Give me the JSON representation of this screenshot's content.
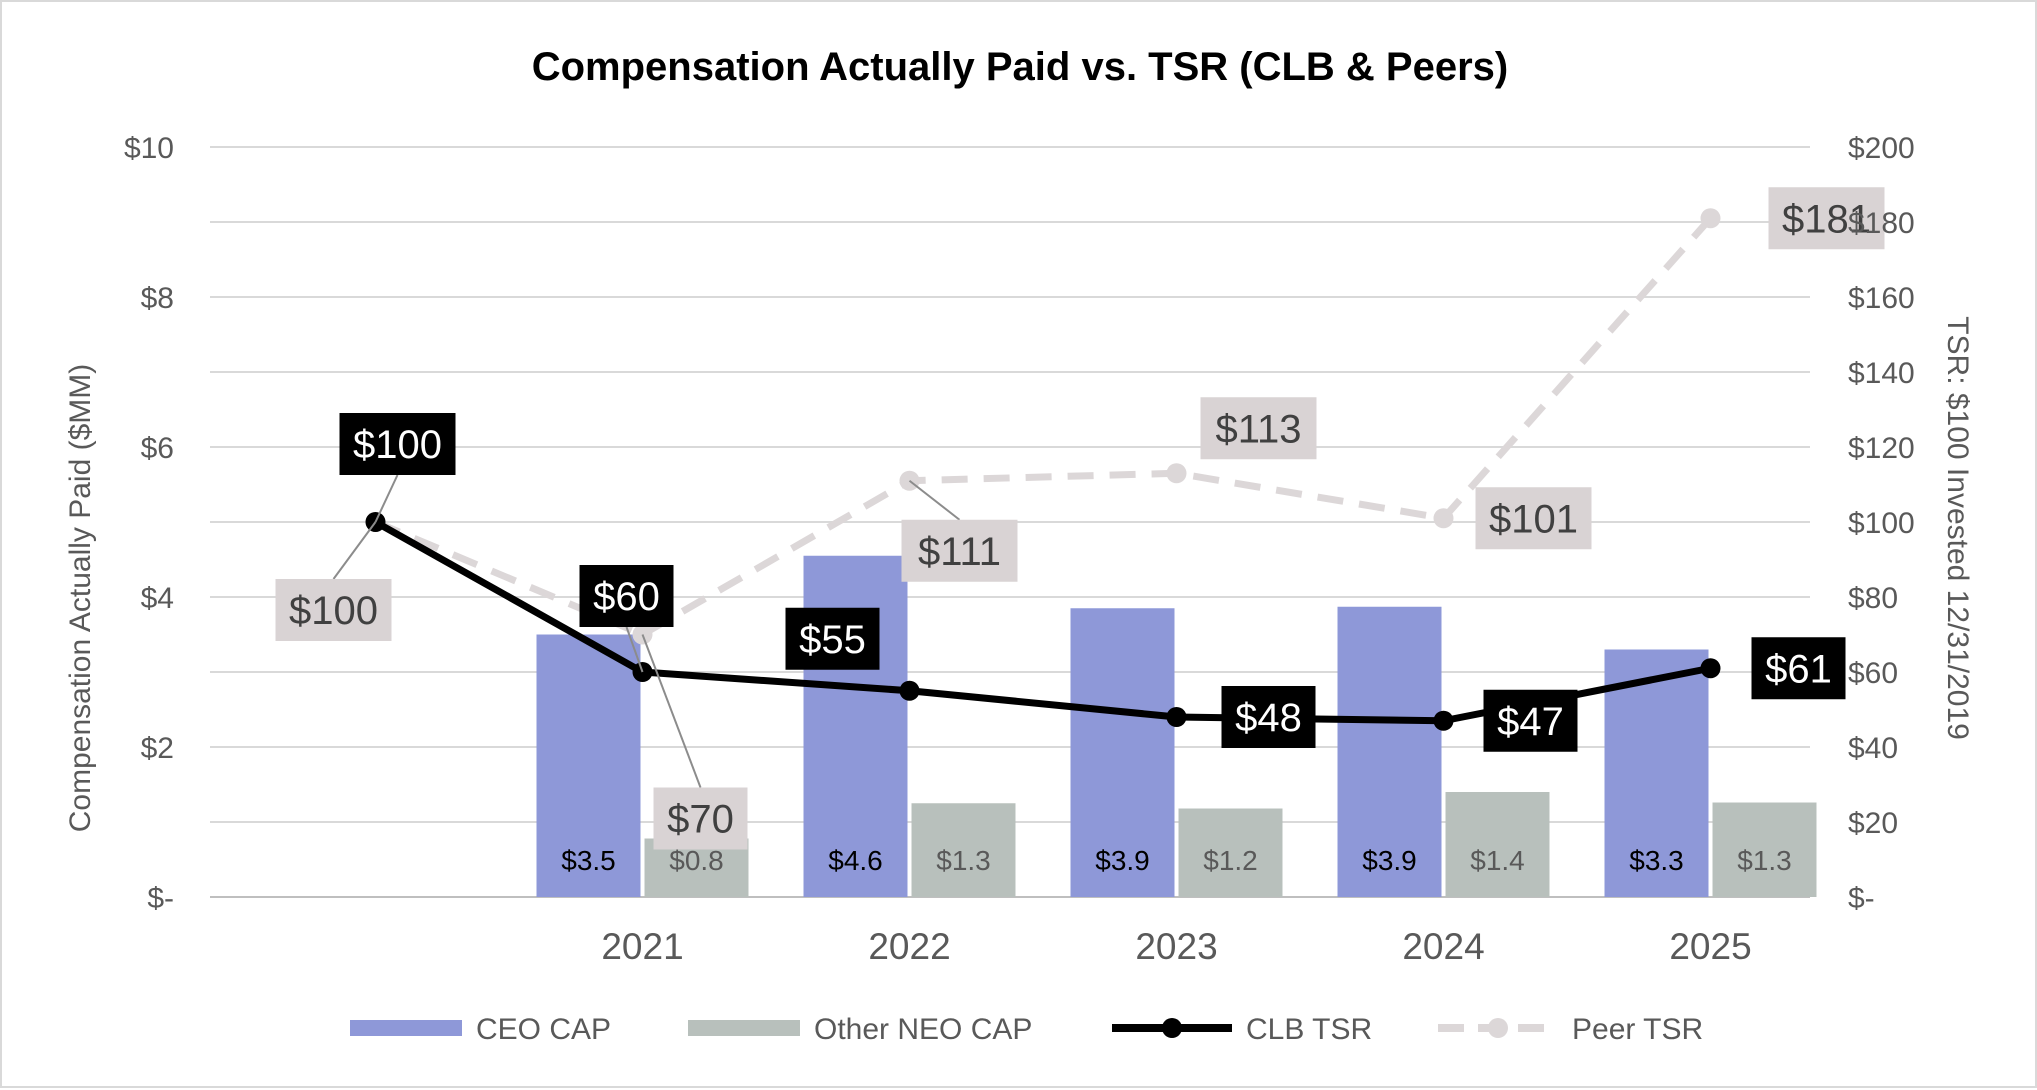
{
  "chart_data": {
    "type": "bar",
    "title": "Compensation Actually Paid vs. TSR (CLB & Peers)",
    "ylabel": "Compensation  Actually Paid ($MM)",
    "y2label": "TSR: $100 Invested  12/31/2019",
    "ylim": [
      0,
      10
    ],
    "y2lim": [
      0,
      200
    ],
    "yticks": [
      0,
      2,
      4,
      6,
      8,
      10
    ],
    "ytick_labels": [
      "$-",
      "$2",
      "$4",
      "$6",
      "$8",
      "$10"
    ],
    "y2ticks": [
      0,
      20,
      40,
      60,
      80,
      100,
      120,
      140,
      160,
      180,
      200
    ],
    "y2tick_labels": [
      "$-",
      "$20",
      "$40",
      "$60",
      "$80",
      "$100",
      "$120",
      "$140",
      "$160",
      "$180",
      "$200"
    ],
    "categories": [
      "",
      "2021",
      "2022",
      "2023",
      "2024",
      "2025"
    ],
    "bar_series": [
      {
        "name": "CEO CAP",
        "color": "#8e98d8",
        "label_color": "#000000",
        "values": [
          null,
          3.5,
          4.55,
          3.85,
          3.87,
          3.3
        ],
        "labels": [
          "",
          "$3.5",
          "$4.6",
          "$3.9",
          "$3.9",
          "$3.3"
        ]
      },
      {
        "name": "Other NEO CAP",
        "color": "#b8c0bc",
        "label_color": "#595959",
        "values": [
          null,
          0.78,
          1.25,
          1.18,
          1.4,
          1.26
        ],
        "labels": [
          "",
          "$0.8",
          "$1.3",
          "$1.2",
          "$1.4",
          "$1.3"
        ]
      }
    ],
    "line_series": [
      {
        "name": "CLB TSR",
        "color": "#000000",
        "dashed": false,
        "values": [
          100,
          60,
          55,
          48,
          47,
          61
        ],
        "labels": [
          "$100",
          "$60",
          "$55",
          "$48",
          "$47",
          "$61"
        ],
        "label_bg": "#000000",
        "label_color": "#ffffff"
      },
      {
        "name": "Peer TSR",
        "color": "#dcd7d8",
        "dashed": true,
        "values": [
          100,
          70,
          111,
          113,
          101,
          181
        ],
        "labels": [
          "$100",
          "$70",
          "$111",
          "$113",
          "$101",
          "$181"
        ],
        "label_bg": "#d9d3d4",
        "label_color": "#404040"
      }
    ],
    "legend": [
      "CEO CAP",
      "Other NEO CAP",
      "CLB TSR",
      "Peer TSR"
    ],
    "legend_position": "bottom",
    "grid": true
  }
}
